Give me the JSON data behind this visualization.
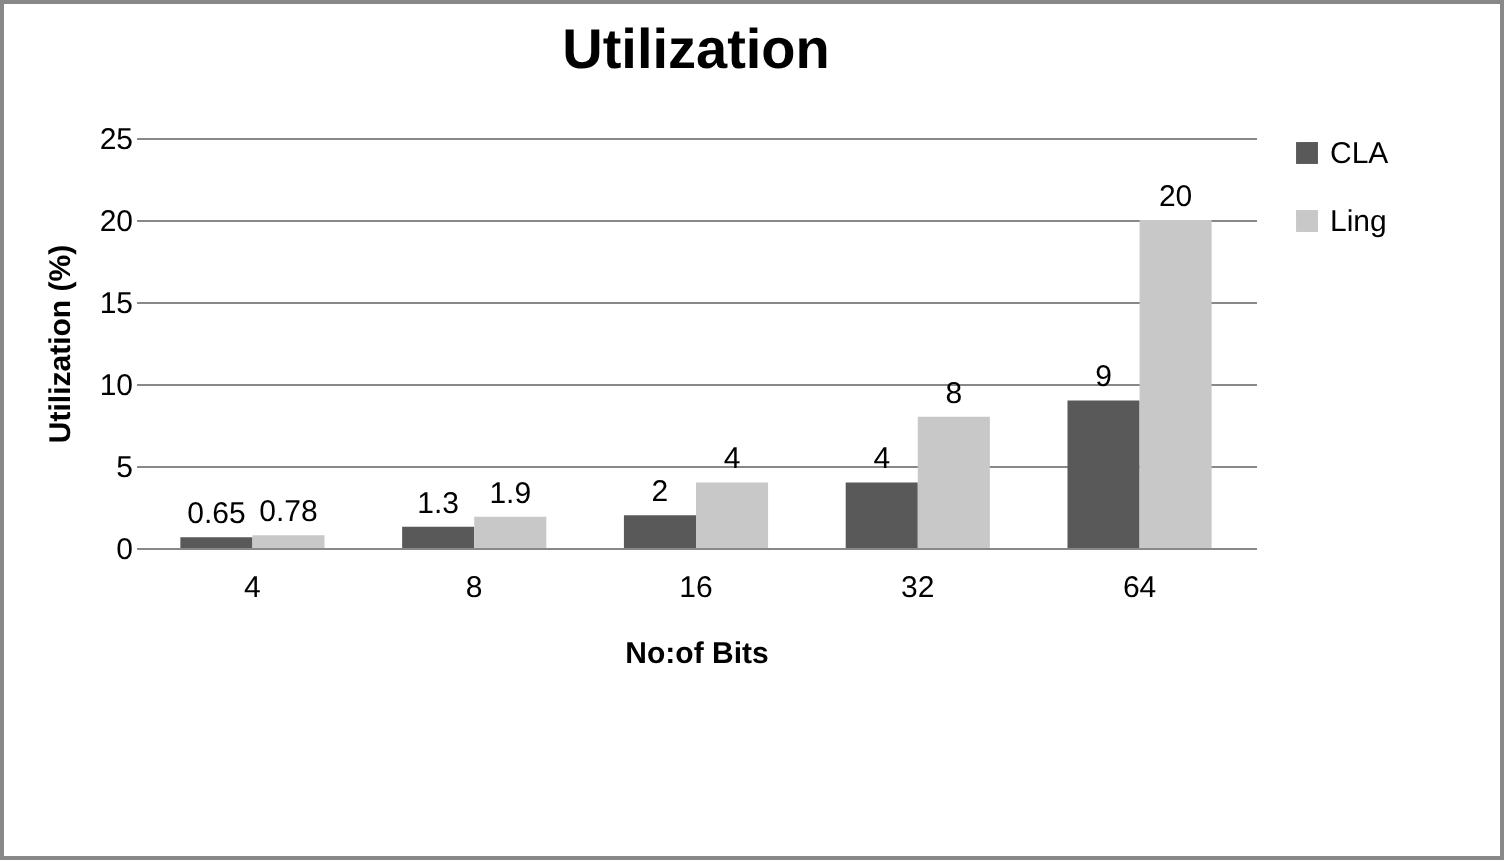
{
  "chart_data": {
    "type": "bar",
    "title": "Utilization",
    "xlabel": "No:of Bits",
    "ylabel": "Utilization (%)",
    "categories": [
      "4",
      "8",
      "16",
      "32",
      "64"
    ],
    "series": [
      {
        "name": "CLA",
        "color": "#595959",
        "values": [
          0.65,
          1.3,
          2,
          4,
          9
        ]
      },
      {
        "name": "Ling",
        "color": "#c8c8c8",
        "values": [
          0.78,
          1.9,
          4,
          8,
          20
        ]
      }
    ],
    "ylim": [
      0,
      25
    ],
    "yticks": [
      0,
      5,
      10,
      15,
      20,
      25
    ],
    "grid": "y",
    "legend": "right",
    "data_labels": true
  }
}
